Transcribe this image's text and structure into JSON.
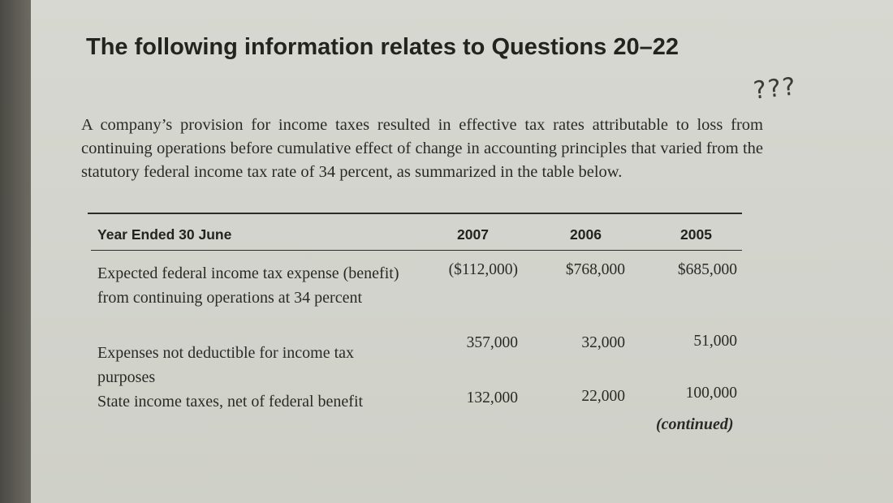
{
  "title": "The following information relates to Questions 20–22",
  "handwritten_note": "???",
  "intro": "A company’s provision for income taxes resulted in effective tax rates attributable to loss from continuing operations before cumulative effect of change in accounting principles that varied from the statutory federal income tax rate of 34 percent, as summarized in the table below.",
  "table": {
    "headers": [
      "Year Ended 30 June",
      "2007",
      "2006",
      "2005"
    ],
    "rows": [
      {
        "label": "Expected federal income tax expense (benefit) from continuing operations at 34 percent",
        "values": [
          "($112,000)",
          "$768,000",
          "$685,000"
        ]
      },
      {
        "label": "Expenses not deductible for income tax purposes",
        "values": [
          "357,000",
          "32,000",
          "51,000"
        ]
      },
      {
        "label": "State income taxes, net of federal benefit",
        "values": [
          "132,000",
          "22,000",
          "100,000"
        ]
      }
    ]
  },
  "continued": "(continued)"
}
